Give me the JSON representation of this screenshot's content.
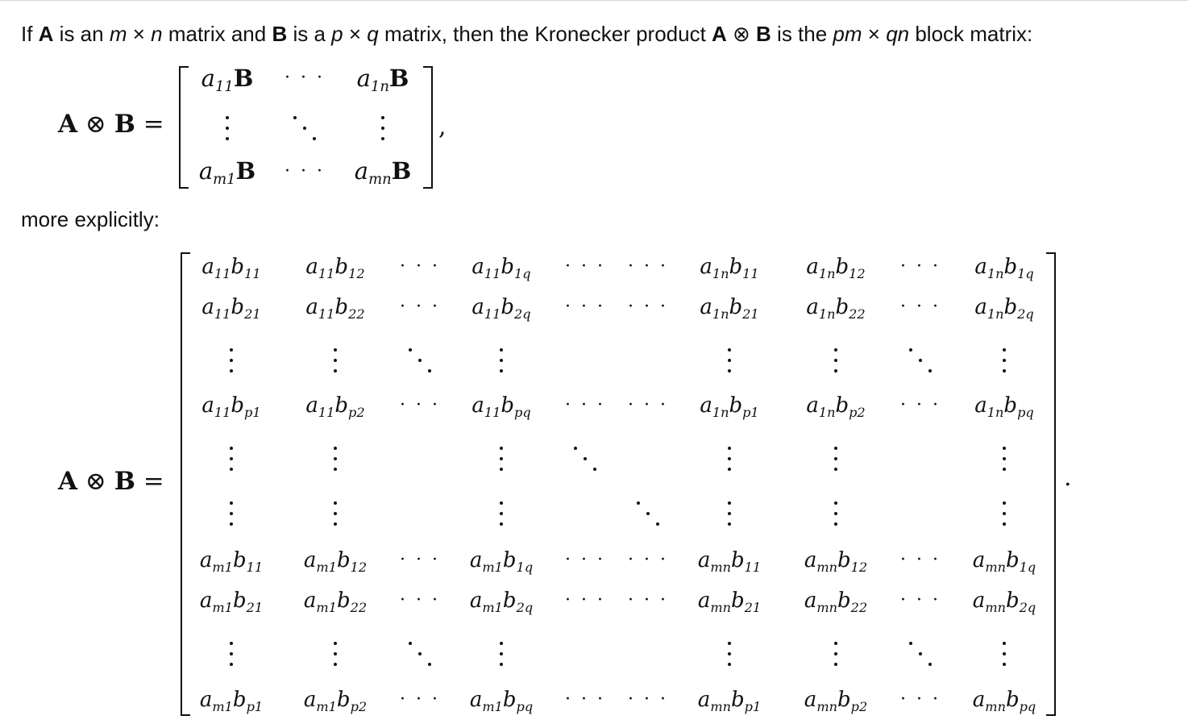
{
  "intro": {
    "if": "If ",
    "A": "A",
    "is_an": " is an ",
    "m": "m",
    "times1": " × ",
    "n": "n",
    "matrix_and": " matrix and ",
    "B": "B",
    "is_a": " is a ",
    "p": "p",
    "times2": " × ",
    "q": "q",
    "matrix_then": " matrix, then the Kronecker product ",
    "A2": "A",
    "otimes": " ⊗ ",
    "B2": "B",
    "is_the": " is the ",
    "pm": "pm",
    "times3": " × ",
    "qn": "qn",
    "block": " block matrix:"
  },
  "more_explicitly": "more explicitly:",
  "lhs": {
    "A": "A",
    "op": " ⊗ ",
    "B": "B",
    "eq": " ="
  },
  "comma": ",",
  "period": ".",
  "block_matrix": [
    [
      "a11B",
      "hdots",
      "a1nB"
    ],
    [
      "vdots",
      "ddots",
      "vdots"
    ],
    [
      "am1B",
      "hdots",
      "amnB"
    ]
  ],
  "explicit_matrix_note": "entries a_ij b_kl arranged in pm × qn layout"
}
